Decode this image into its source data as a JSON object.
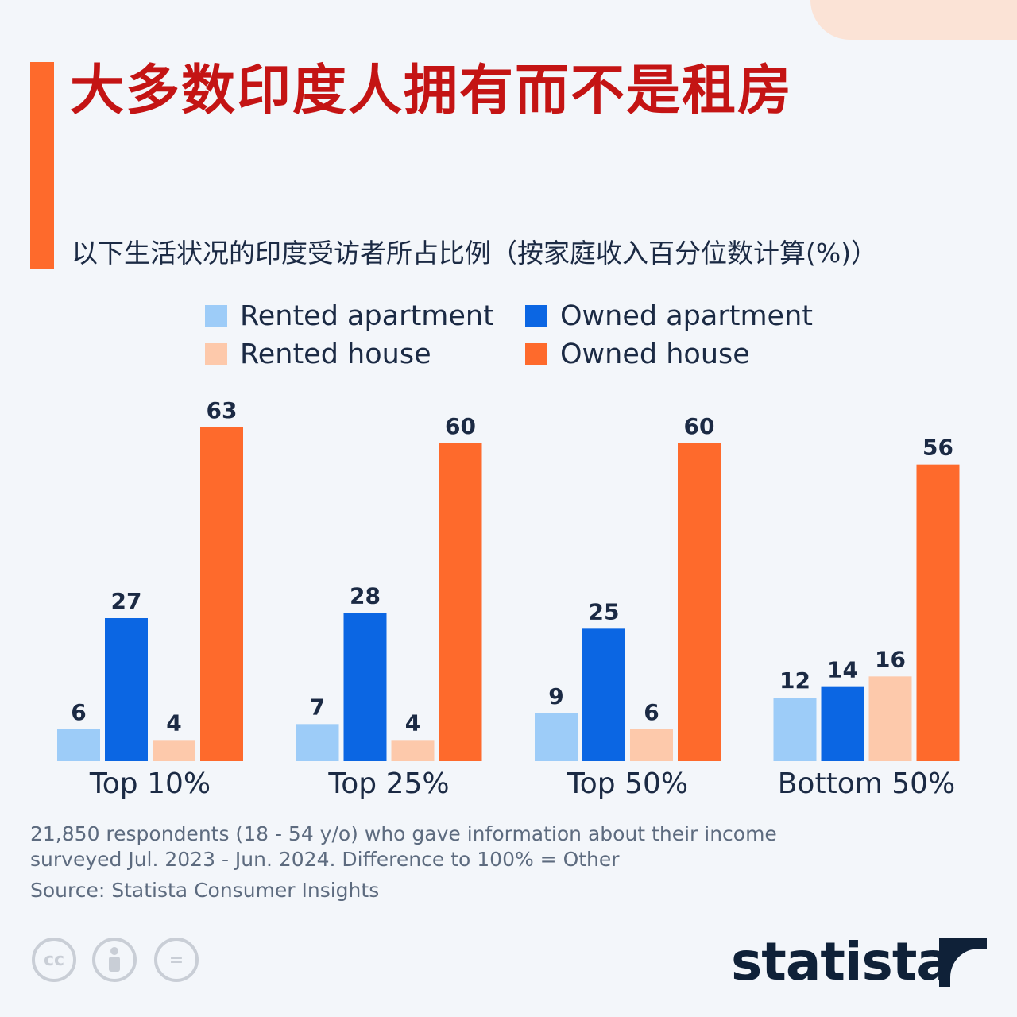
{
  "title": "大多数印度人拥有而不是租房",
  "subtitle": "以下生活状况的印度受访者所占比例（按家庭收入百分位数计算(%)）",
  "legend": [
    {
      "label": "Rented apartment",
      "color": "#9dccf8"
    },
    {
      "label": "Owned apartment",
      "color": "#0b66e3"
    },
    {
      "label": "Rented house",
      "color": "#fdc9ab"
    },
    {
      "label": "Owned house",
      "color": "#fe6a2c"
    }
  ],
  "chart_data": {
    "type": "bar",
    "title": "大多数印度人拥有而不是租房",
    "categories": [
      "Top 10%",
      "Top 25%",
      "Top 50%",
      "Bottom 50%"
    ],
    "series": [
      {
        "name": "Rented apartment",
        "values": [
          6,
          7,
          9,
          12
        ],
        "color": "#9dccf8"
      },
      {
        "name": "Owned apartment",
        "values": [
          27,
          28,
          25,
          14
        ],
        "color": "#0b66e3"
      },
      {
        "name": "Rented house",
        "values": [
          4,
          4,
          6,
          16
        ],
        "color": "#fdc9ab"
      },
      {
        "name": "Owned house",
        "values": [
          63,
          60,
          60,
          56
        ],
        "color": "#fe6a2c"
      }
    ],
    "ylim": [
      0,
      63
    ],
    "grid": false,
    "legend_position": "top",
    "data_labels": true
  },
  "footnote": "21,850 respondents (18 - 54 y/o) who gave information about their income surveyed Jul. 2023 - Jun. 2024. Difference to 100% = Other",
  "source": "Source: Statista Consumer Insights",
  "license": {
    "cc": "cc",
    "by": "person-icon",
    "nd": "="
  },
  "brand": {
    "name": "statista"
  }
}
